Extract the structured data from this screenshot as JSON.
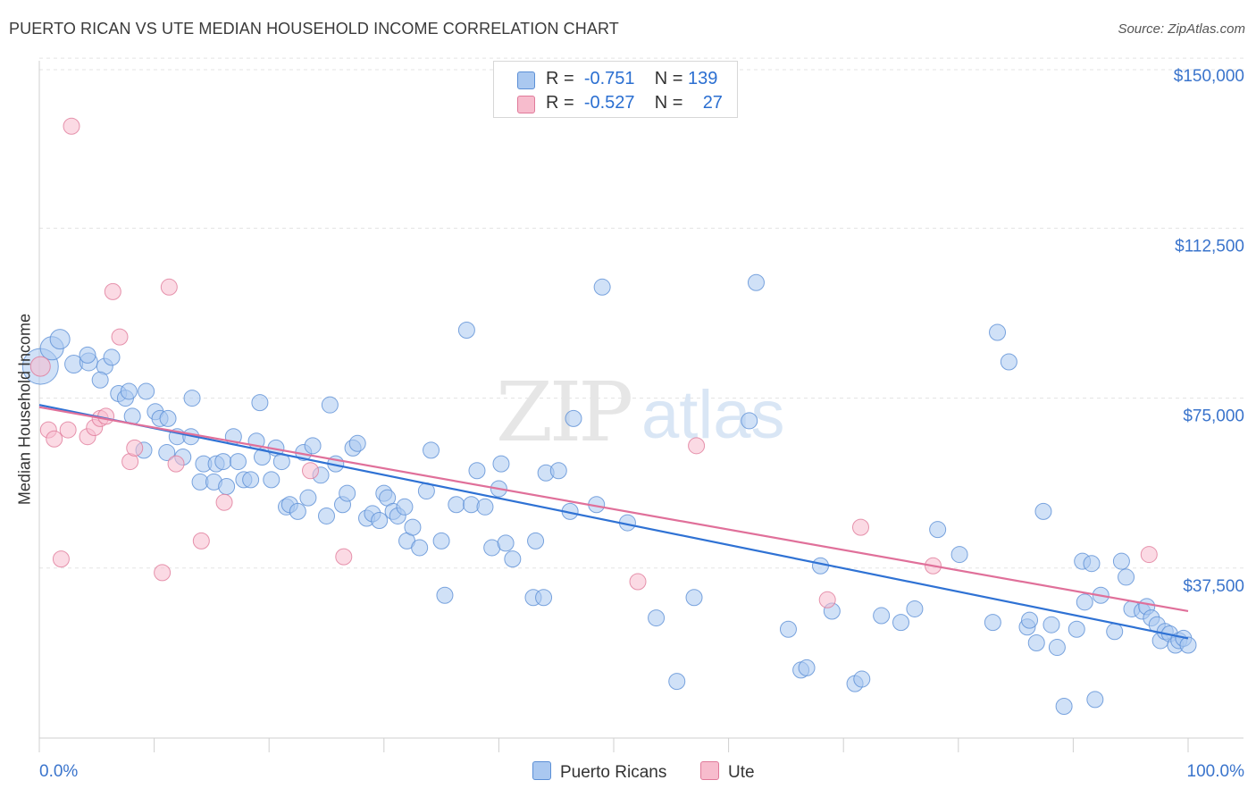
{
  "title": "PUERTO RICAN VS UTE MEDIAN HOUSEHOLD INCOME CORRELATION CHART",
  "source": "Source: ZipAtlas.com",
  "watermark": {
    "zip": "ZIP",
    "atlas": "atlas"
  },
  "legend": {
    "rows": [
      {
        "r_label": "R =",
        "r_value": "-0.751",
        "n_label": "N =",
        "n_value": "139",
        "color": "#aac8f0",
        "border": "#5b8fd6"
      },
      {
        "r_label": "R =",
        "r_value": "-0.527",
        "n_label": "N =",
        "n_value": "27",
        "color": "#f7bccd",
        "border": "#e07a9a"
      }
    ]
  },
  "bottom_legend": [
    {
      "label": "Puerto Ricans",
      "color": "#aac8f0",
      "border": "#5b8fd6"
    },
    {
      "label": "Ute",
      "color": "#f7bccd",
      "border": "#e07a9a"
    }
  ],
  "chart_data": {
    "type": "scatter",
    "title": "PUERTO RICAN VS UTE MEDIAN HOUSEHOLD INCOME CORRELATION CHART",
    "xlabel": "",
    "ylabel": "Median Household Income",
    "xlim": [
      0,
      100
    ],
    "ylim": [
      0,
      152000
    ],
    "x_tick_labels": [
      "0.0%",
      "100.0%"
    ],
    "y_ticks": [
      37500,
      75000,
      112500,
      150000
    ],
    "y_tick_labels": [
      "$37,500",
      "$75,000",
      "$112,500",
      "$150,000"
    ],
    "grid": true,
    "legend_position": "top-center",
    "series": [
      {
        "name": "Puerto Ricans",
        "color": "#5b8fd6",
        "fill": "#aac8f0",
        "trend": {
          "x": [
            0,
            100
          ],
          "y": [
            73500,
            22000
          ]
        },
        "points": [
          [
            0.1,
            82000,
            20
          ],
          [
            1.1,
            86000,
            13
          ],
          [
            1.8,
            88000,
            11
          ],
          [
            3.0,
            82500,
            10
          ],
          [
            4.3,
            83000,
            10
          ],
          [
            4.2,
            84500,
            9
          ],
          [
            5.7,
            82000,
            9
          ],
          [
            6.3,
            84000,
            9
          ],
          [
            5.3,
            79000,
            9
          ],
          [
            6.9,
            76000,
            9
          ],
          [
            7.5,
            75000,
            9
          ],
          [
            7.8,
            76500,
            9
          ],
          [
            8.1,
            71000,
            9
          ],
          [
            9.3,
            76500,
            9
          ],
          [
            10.1,
            72000,
            9
          ],
          [
            10.5,
            70500,
            9
          ],
          [
            11.2,
            70500,
            9
          ],
          [
            9.1,
            63500,
            9
          ],
          [
            11.1,
            63000,
            9
          ],
          [
            12.0,
            66500,
            9
          ],
          [
            12.5,
            62000,
            9
          ],
          [
            13.3,
            75000,
            9
          ],
          [
            13.2,
            66500,
            9
          ],
          [
            14.0,
            56500,
            9
          ],
          [
            14.3,
            60500,
            9
          ],
          [
            15.2,
            56500,
            9
          ],
          [
            15.4,
            60500,
            9
          ],
          [
            16.0,
            61000,
            9
          ],
          [
            16.3,
            55500,
            9
          ],
          [
            16.9,
            66500,
            9
          ],
          [
            17.3,
            61000,
            9
          ],
          [
            17.8,
            57000,
            9
          ],
          [
            18.4,
            57000,
            9
          ],
          [
            18.9,
            65500,
            9
          ],
          [
            19.2,
            74000,
            9
          ],
          [
            19.4,
            62000,
            9
          ],
          [
            20.2,
            57000,
            9
          ],
          [
            20.6,
            64000,
            9
          ],
          [
            21.1,
            61000,
            9
          ],
          [
            21.5,
            51000,
            9
          ],
          [
            21.8,
            51500,
            9
          ],
          [
            22.5,
            50000,
            9
          ],
          [
            23.0,
            63000,
            9
          ],
          [
            23.4,
            53000,
            9
          ],
          [
            23.8,
            64500,
            9
          ],
          [
            24.5,
            58000,
            9
          ],
          [
            25.0,
            49000,
            9
          ],
          [
            25.3,
            73500,
            9
          ],
          [
            25.8,
            60500,
            9
          ],
          [
            26.4,
            51500,
            9
          ],
          [
            26.8,
            54000,
            9
          ],
          [
            27.3,
            64000,
            9
          ],
          [
            27.7,
            65000,
            9
          ],
          [
            28.5,
            48500,
            9
          ],
          [
            29.0,
            49500,
            9
          ],
          [
            29.6,
            48000,
            9
          ],
          [
            30.0,
            54000,
            9
          ],
          [
            30.3,
            53000,
            9
          ],
          [
            30.8,
            50000,
            9
          ],
          [
            31.2,
            49000,
            9
          ],
          [
            31.8,
            51000,
            9
          ],
          [
            32.0,
            43500,
            9
          ],
          [
            32.5,
            46500,
            9
          ],
          [
            33.1,
            42000,
            9
          ],
          [
            33.7,
            54500,
            9
          ],
          [
            34.1,
            63500,
            9
          ],
          [
            35.0,
            43500,
            9
          ],
          [
            35.3,
            31500,
            9
          ],
          [
            36.3,
            51500,
            9
          ],
          [
            37.2,
            90000,
            9
          ],
          [
            37.6,
            51500,
            9
          ],
          [
            38.1,
            59000,
            9
          ],
          [
            38.8,
            51000,
            9
          ],
          [
            39.4,
            42000,
            9
          ],
          [
            40.0,
            55000,
            9
          ],
          [
            40.2,
            60500,
            9
          ],
          [
            40.6,
            43000,
            9
          ],
          [
            41.2,
            39500,
            9
          ],
          [
            43.0,
            31000,
            9
          ],
          [
            43.2,
            43500,
            9
          ],
          [
            43.9,
            31000,
            9
          ],
          [
            44.1,
            58500,
            9
          ],
          [
            45.2,
            59000,
            9
          ],
          [
            46.2,
            50000,
            9
          ],
          [
            46.5,
            70500,
            9
          ],
          [
            48.5,
            51500,
            9
          ],
          [
            49.0,
            99500,
            9
          ],
          [
            51.2,
            47500,
            9
          ],
          [
            53.7,
            26500,
            9
          ],
          [
            55.5,
            12500,
            9
          ],
          [
            57.0,
            31000,
            9
          ],
          [
            61.8,
            70000,
            9
          ],
          [
            62.4,
            100500,
            9
          ],
          [
            65.2,
            24000,
            9
          ],
          [
            66.3,
            15000,
            9
          ],
          [
            66.8,
            15500,
            9
          ],
          [
            68.0,
            38000,
            9
          ],
          [
            69.0,
            28000,
            9
          ],
          [
            71.0,
            12000,
            9
          ],
          [
            71.6,
            13000,
            9
          ],
          [
            73.3,
            27000,
            9
          ],
          [
            75.0,
            25500,
            9
          ],
          [
            76.2,
            28500,
            9
          ],
          [
            78.2,
            46000,
            9
          ],
          [
            80.1,
            40500,
            9
          ],
          [
            83.0,
            25500,
            9
          ],
          [
            83.4,
            89500,
            9
          ],
          [
            84.4,
            83000,
            9
          ],
          [
            86.0,
            24500,
            9
          ],
          [
            86.2,
            26000,
            9
          ],
          [
            86.8,
            21000,
            9
          ],
          [
            87.4,
            50000,
            9
          ],
          [
            88.1,
            25000,
            9
          ],
          [
            88.6,
            20000,
            9
          ],
          [
            89.2,
            7000,
            9
          ],
          [
            90.3,
            24000,
            9
          ],
          [
            90.8,
            39000,
            9
          ],
          [
            91.0,
            30000,
            9
          ],
          [
            91.6,
            38500,
            9
          ],
          [
            91.9,
            8500,
            9
          ],
          [
            92.4,
            31500,
            9
          ],
          [
            93.6,
            23500,
            9
          ],
          [
            94.2,
            39000,
            9
          ],
          [
            94.6,
            35500,
            9
          ],
          [
            95.1,
            28500,
            9
          ],
          [
            96.0,
            28000,
            9
          ],
          [
            96.4,
            29000,
            9
          ],
          [
            96.8,
            26500,
            9
          ],
          [
            97.3,
            25000,
            9
          ],
          [
            97.6,
            21500,
            9
          ],
          [
            98.0,
            23500,
            9
          ],
          [
            98.4,
            23000,
            9
          ],
          [
            98.9,
            20500,
            9
          ],
          [
            99.2,
            21500,
            9
          ],
          [
            99.6,
            22000,
            9
          ],
          [
            100.0,
            20500,
            9
          ]
        ]
      },
      {
        "name": "Ute",
        "color": "#e07a9a",
        "fill": "#f7bccd",
        "trend": {
          "x": [
            0,
            100
          ],
          "y": [
            73000,
            28000
          ]
        },
        "points": [
          [
            0.1,
            82000,
            11
          ],
          [
            0.8,
            68000,
            9
          ],
          [
            1.3,
            66000,
            9
          ],
          [
            1.9,
            39500,
            9
          ],
          [
            2.5,
            68000,
            9
          ],
          [
            2.8,
            135000,
            9
          ],
          [
            4.2,
            66500,
            9
          ],
          [
            4.8,
            68500,
            9
          ],
          [
            5.3,
            70500,
            9
          ],
          [
            5.8,
            71000,
            9
          ],
          [
            6.4,
            98500,
            9
          ],
          [
            7.0,
            88500,
            9
          ],
          [
            7.9,
            61000,
            9
          ],
          [
            8.3,
            64000,
            9
          ],
          [
            10.7,
            36500,
            9
          ],
          [
            11.3,
            99500,
            9
          ],
          [
            11.9,
            60500,
            9
          ],
          [
            14.1,
            43500,
            9
          ],
          [
            16.1,
            52000,
            9
          ],
          [
            23.6,
            59000,
            9
          ],
          [
            26.5,
            40000,
            9
          ],
          [
            52.1,
            34500,
            9
          ],
          [
            57.2,
            64500,
            9
          ],
          [
            68.6,
            30500,
            9
          ],
          [
            71.5,
            46500,
            9
          ],
          [
            77.8,
            38000,
            9
          ],
          [
            96.6,
            40500,
            9
          ]
        ]
      }
    ]
  }
}
